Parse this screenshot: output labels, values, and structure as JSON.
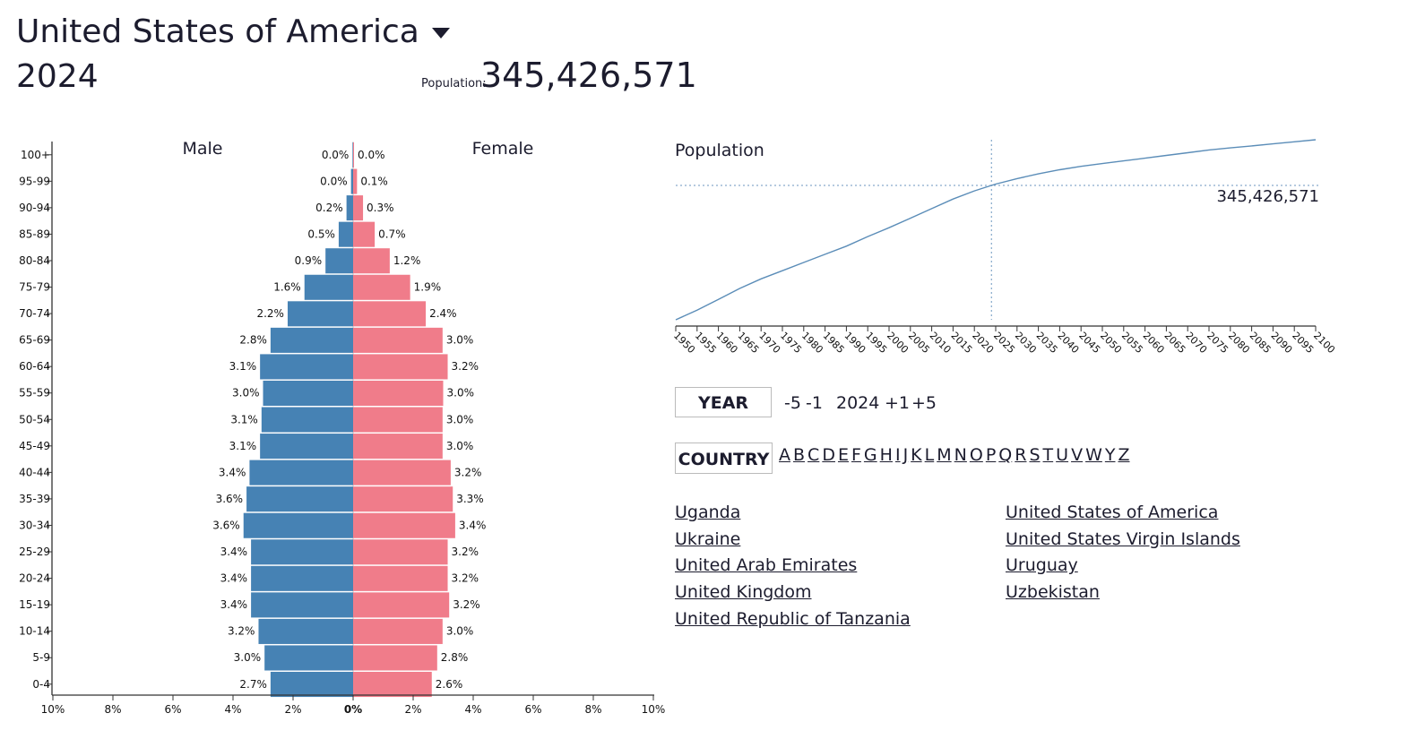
{
  "header": {
    "country": "United States of America",
    "year": "2024",
    "population_label": "Population:",
    "population_value": "345,426,571"
  },
  "controls": {
    "year_label": "YEAR",
    "minus5": "-5",
    "minus1": "-1",
    "current_year": "2024",
    "plus1": "+1",
    "plus5": "+5",
    "country_label": "COUNTRY",
    "letters": [
      "A",
      "B",
      "C",
      "D",
      "E",
      "F",
      "G",
      "H",
      "I",
      "J",
      "K",
      "L",
      "M",
      "N",
      "O",
      "P",
      "Q",
      "R",
      "S",
      "T",
      "U",
      "V",
      "W",
      "Y",
      "Z"
    ]
  },
  "countries": {
    "left": [
      "Uganda",
      "Ukraine",
      "United Arab Emirates",
      "United Kingdom",
      "United Republic of Tanzania"
    ],
    "right": [
      "United States of America",
      "United States Virgin Islands",
      "Uruguay",
      "Uzbekistan"
    ]
  },
  "colors": {
    "male": "#4682b4",
    "female": "#f07c8a",
    "line": "#5b8db8",
    "text": "#1c1c2e"
  },
  "chart_data": [
    {
      "type": "bar",
      "orientation": "horizontal",
      "left_label": "Male",
      "right_label": "Female",
      "categories": [
        "100+",
        "95-99",
        "90-94",
        "85-89",
        "80-84",
        "75-79",
        "70-74",
        "65-69",
        "60-64",
        "55-59",
        "50-54",
        "45-49",
        "40-44",
        "35-39",
        "30-34",
        "25-29",
        "20-24",
        "15-19",
        "10-14",
        "5-9",
        "0-4"
      ],
      "series": [
        {
          "name": "Male",
          "values": [
            0.0,
            0.0,
            0.2,
            0.5,
            0.9,
            1.6,
            2.2,
            2.8,
            3.1,
            3.0,
            3.1,
            3.1,
            3.4,
            3.6,
            3.6,
            3.4,
            3.4,
            3.4,
            3.2,
            3.0,
            2.7
          ]
        },
        {
          "name": "Female",
          "values": [
            0.0,
            0.1,
            0.3,
            0.7,
            1.2,
            1.9,
            2.4,
            3.0,
            3.2,
            3.0,
            3.0,
            3.0,
            3.2,
            3.3,
            3.4,
            3.2,
            3.2,
            3.2,
            3.0,
            2.8,
            2.6
          ]
        }
      ],
      "bar_values": {
        "male": [
          0.02,
          0.07,
          0.22,
          0.48,
          0.92,
          1.62,
          2.18,
          2.75,
          3.1,
          3.0,
          3.05,
          3.1,
          3.45,
          3.55,
          3.65,
          3.4,
          3.4,
          3.4,
          3.15,
          2.95,
          2.75
        ],
        "female": [
          0.03,
          0.13,
          0.33,
          0.72,
          1.22,
          1.9,
          2.42,
          2.98,
          3.15,
          3.0,
          2.98,
          2.98,
          3.25,
          3.32,
          3.4,
          3.15,
          3.15,
          3.2,
          2.98,
          2.8,
          2.62
        ]
      },
      "x_ticks": [
        "10%",
        "8%",
        "6%",
        "4%",
        "2%",
        "0%",
        "2%",
        "4%",
        "6%",
        "8%",
        "10%"
      ],
      "xlim": [
        -10,
        10
      ]
    },
    {
      "type": "line",
      "title": "Population",
      "x": [
        1950,
        1955,
        1960,
        1965,
        1970,
        1975,
        1980,
        1985,
        1990,
        1995,
        2000,
        2005,
        2010,
        2015,
        2020,
        2024,
        2025,
        2030,
        2035,
        2040,
        2045,
        2050,
        2055,
        2060,
        2065,
        2070,
        2075,
        2080,
        2085,
        2090,
        2095,
        2100
      ],
      "values": [
        148,
        162,
        178,
        194,
        208,
        220,
        232,
        244,
        256,
        270,
        283,
        297,
        311,
        325,
        337,
        345,
        347,
        355,
        362,
        368,
        373,
        377,
        381,
        385,
        389,
        393,
        397,
        400,
        403,
        406,
        409,
        412
      ],
      "xlim": [
        1950,
        2100
      ],
      "ylim": [
        148,
        412
      ],
      "x_ticks": [
        "1950",
        "1955",
        "1960",
        "1965",
        "1970",
        "1975",
        "1980",
        "1985",
        "1990",
        "1995",
        "2000",
        "2005",
        "2010",
        "2015",
        "2020",
        "2025",
        "2030",
        "2035",
        "2040",
        "2045",
        "2050",
        "2055",
        "2060",
        "2065",
        "2070",
        "2075",
        "2080",
        "2085",
        "2090",
        "2095",
        "2100"
      ],
      "highlight_x": 2024,
      "highlight_label": "345,426,571"
    }
  ]
}
